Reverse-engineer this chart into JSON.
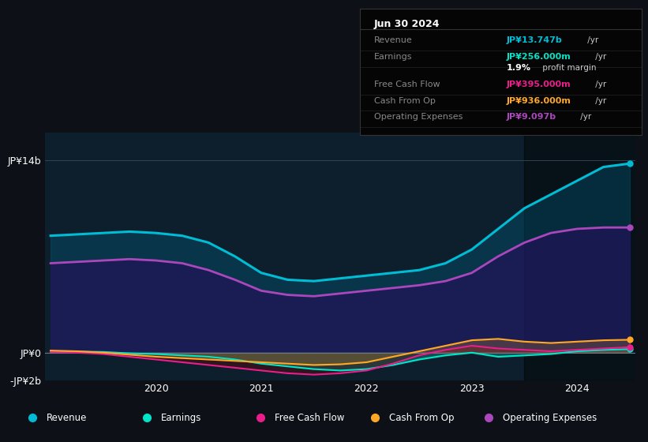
{
  "bg_color": "#0d1117",
  "chart_bg": "#0d1f2d",
  "title_box": {
    "date": "Jun 30 2024",
    "rows": [
      {
        "label": "Revenue",
        "value": "JP¥13.747b",
        "value_color": "#00bcd4",
        "suffix": " /yr"
      },
      {
        "label": "Earnings",
        "value": "JP¥256.000m",
        "value_color": "#00e5c8",
        "suffix": " /yr"
      },
      {
        "label": "",
        "value": "1.9%",
        "value_color": "#ffffff",
        "suffix": " profit margin"
      },
      {
        "label": "Free Cash Flow",
        "value": "JP¥395.000m",
        "value_color": "#e91e8c",
        "suffix": " /yr"
      },
      {
        "label": "Cash From Op",
        "value": "JP¥936.000m",
        "value_color": "#ffa726",
        "suffix": " /yr"
      },
      {
        "label": "Operating Expenses",
        "value": "JP¥9.097b",
        "value_color": "#ab47bc",
        "suffix": " /yr"
      }
    ]
  },
  "ylim": [
    -2000000000,
    16000000000
  ],
  "ytick_vals": [
    -2000000000,
    0,
    14000000000
  ],
  "ytick_labels": [
    "-JP¥2b",
    "JP¥0",
    "JP¥14b"
  ],
  "legend": [
    {
      "label": "Revenue",
      "color": "#00bcd4"
    },
    {
      "label": "Earnings",
      "color": "#00e5c8"
    },
    {
      "label": "Free Cash Flow",
      "color": "#e91e8c"
    },
    {
      "label": "Cash From Op",
      "color": "#ffa726"
    },
    {
      "label": "Operating Expenses",
      "color": "#ab47bc"
    }
  ],
  "series": {
    "x": [
      2019.0,
      2019.25,
      2019.5,
      2019.75,
      2020.0,
      2020.25,
      2020.5,
      2020.75,
      2021.0,
      2021.25,
      2021.5,
      2021.75,
      2022.0,
      2022.25,
      2022.5,
      2022.75,
      2023.0,
      2023.25,
      2023.5,
      2023.75,
      2024.0,
      2024.25,
      2024.5
    ],
    "revenue": [
      8500000000,
      8600000000,
      8700000000,
      8800000000,
      8700000000,
      8500000000,
      8000000000,
      7000000000,
      5800000000,
      5300000000,
      5200000000,
      5400000000,
      5600000000,
      5800000000,
      6000000000,
      6500000000,
      7500000000,
      9000000000,
      10500000000,
      11500000000,
      12500000000,
      13500000000,
      13750000000
    ],
    "op_expenses": [
      6500000000,
      6600000000,
      6700000000,
      6800000000,
      6700000000,
      6500000000,
      6000000000,
      5300000000,
      4500000000,
      4200000000,
      4100000000,
      4300000000,
      4500000000,
      4700000000,
      4900000000,
      5200000000,
      5800000000,
      7000000000,
      8000000000,
      8700000000,
      9000000000,
      9100000000,
      9100000000
    ],
    "earnings": [
      100000000,
      80000000,
      50000000,
      -50000000,
      -100000000,
      -200000000,
      -300000000,
      -500000000,
      -800000000,
      -1000000000,
      -1200000000,
      -1300000000,
      -1200000000,
      -900000000,
      -500000000,
      -200000000,
      0,
      -300000000,
      -200000000,
      -100000000,
      100000000,
      200000000,
      256000000
    ],
    "free_cash_flow": [
      50000000,
      0,
      -100000000,
      -300000000,
      -500000000,
      -700000000,
      -900000000,
      -1100000000,
      -1300000000,
      -1500000000,
      -1600000000,
      -1500000000,
      -1300000000,
      -800000000,
      -200000000,
      200000000,
      500000000,
      300000000,
      200000000,
      100000000,
      200000000,
      300000000,
      395000000
    ],
    "cash_from_op": [
      150000000,
      100000000,
      0,
      -150000000,
      -300000000,
      -400000000,
      -500000000,
      -600000000,
      -700000000,
      -800000000,
      -900000000,
      -850000000,
      -700000000,
      -300000000,
      100000000,
      500000000,
      900000000,
      1000000000,
      800000000,
      700000000,
      800000000,
      900000000,
      936000000
    ]
  }
}
